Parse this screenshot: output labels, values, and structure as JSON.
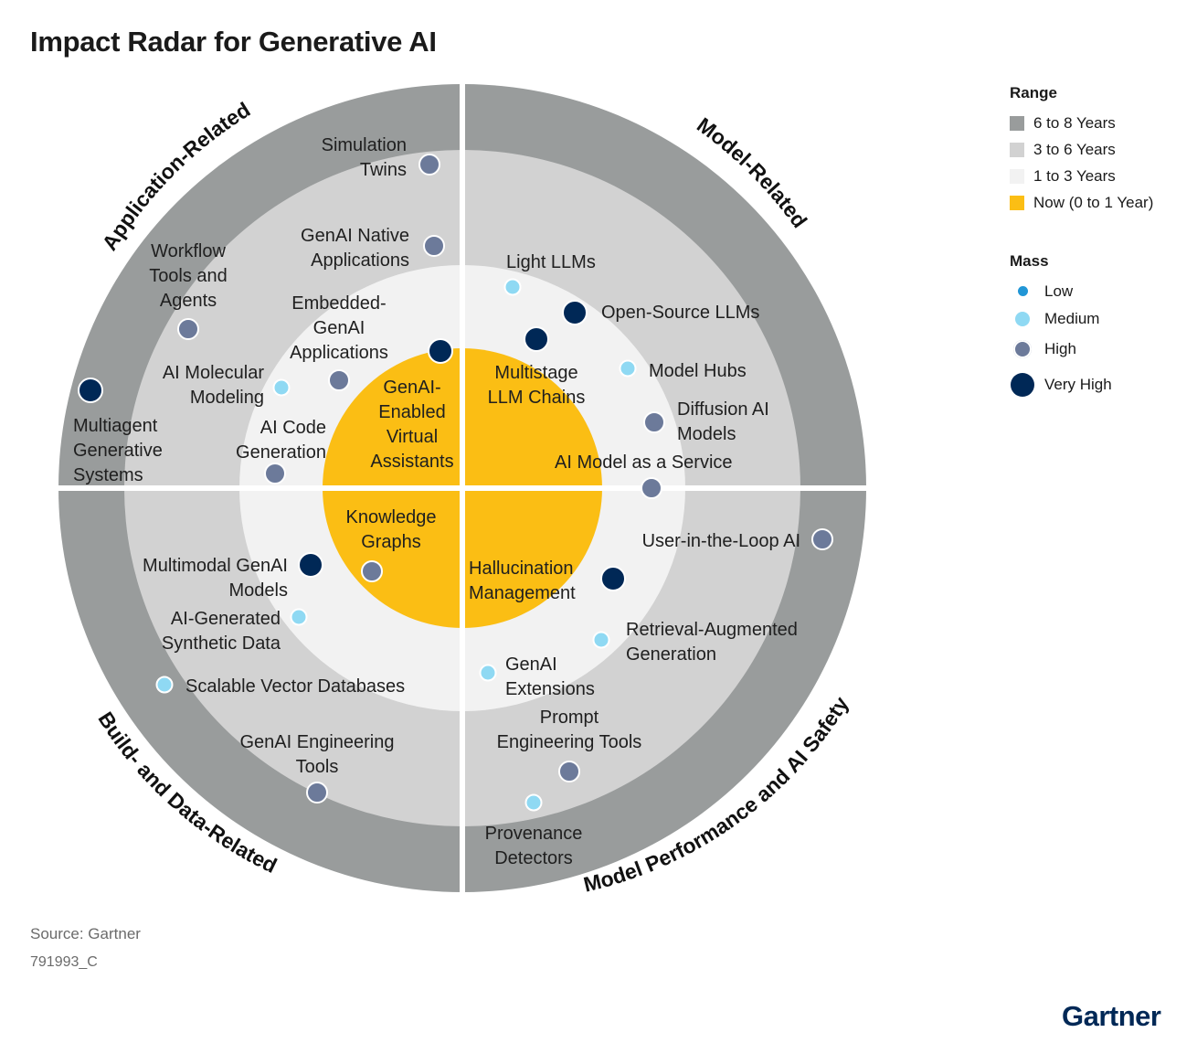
{
  "title": "Impact Radar for Generative AI",
  "legend": {
    "range_title": "Range",
    "ranges": [
      {
        "label": "6 to 8 Years",
        "color": "#999c9c"
      },
      {
        "label": "3 to 6 Years",
        "color": "#d2d2d2"
      },
      {
        "label": "1 to 3 Years",
        "color": "#f2f2f2"
      },
      {
        "label": "Now (0 to 1 Year)",
        "color": "#fbbe14"
      }
    ],
    "mass_title": "Mass",
    "mass": [
      {
        "label": "Low",
        "color": "#2196d6"
      },
      {
        "label": "Medium",
        "color": "#8fd9f3"
      },
      {
        "label": "High",
        "color": "#6c7a9a"
      },
      {
        "label": "Very High",
        "color": "#002856"
      }
    ]
  },
  "quadrants": [
    "Application-Related",
    "Model-Related",
    "Model Performance and AI Safety",
    "Build- and Data-Related"
  ],
  "items": [
    {
      "lines": [
        "Simulation",
        "Twins"
      ],
      "quadrant": "Application-Related",
      "range": "6 to 8 Years",
      "mass": "High"
    },
    {
      "lines": [
        "GenAI Native",
        "Applications"
      ],
      "quadrant": "Application-Related",
      "range": "3 to 6 Years",
      "mass": "High"
    },
    {
      "lines": [
        "Workflow",
        "Tools and",
        "Agents"
      ],
      "quadrant": "Application-Related",
      "range": "3 to 6 Years",
      "mass": "High"
    },
    {
      "lines": [
        "Embedded-",
        "GenAI",
        "Applications"
      ],
      "quadrant": "Application-Related",
      "range": "1 to 3 Years",
      "mass": "High"
    },
    {
      "lines": [
        "AI Molecular",
        "Modeling"
      ],
      "quadrant": "Application-Related",
      "range": "1 to 3 Years",
      "mass": "Medium"
    },
    {
      "lines": [
        "Multiagent",
        "Generative",
        "Systems"
      ],
      "quadrant": "Application-Related",
      "range": "6 to 8 Years",
      "mass": "Very High"
    },
    {
      "lines": [
        "AI Code",
        "Generation"
      ],
      "quadrant": "Application-Related",
      "range": "1 to 3 Years",
      "mass": "High"
    },
    {
      "lines": [
        "GenAI-",
        "Enabled",
        "Virtual",
        "Assistants"
      ],
      "quadrant": "Application-Related",
      "range": "Now (0 to 1 Year)",
      "mass": "Very High"
    },
    {
      "lines": [
        "Light LLMs"
      ],
      "quadrant": "Model-Related",
      "range": "1 to 3 Years",
      "mass": "Medium"
    },
    {
      "lines": [
        "Open-Source LLMs"
      ],
      "quadrant": "Model-Related",
      "range": "1 to 3 Years",
      "mass": "Very High"
    },
    {
      "lines": [
        "Multistage",
        "LLM Chains"
      ],
      "quadrant": "Model-Related",
      "range": "Now (0 to 1 Year)",
      "mass": "Very High"
    },
    {
      "lines": [
        "Model Hubs"
      ],
      "quadrant": "Model-Related",
      "range": "1 to 3 Years",
      "mass": "Medium"
    },
    {
      "lines": [
        "Diffusion AI",
        "Models"
      ],
      "quadrant": "Model-Related",
      "range": "1 to 3 Years",
      "mass": "High"
    },
    {
      "lines": [
        "AI Model as a Service"
      ],
      "quadrant": "Model-Related",
      "range": "1 to 3 Years",
      "mass": "High"
    },
    {
      "lines": [
        "User-in-the-Loop AI"
      ],
      "quadrant": "Model Performance and AI Safety",
      "range": "6 to 8 Years",
      "mass": "High"
    },
    {
      "lines": [
        "Hallucination",
        "Management"
      ],
      "quadrant": "Model Performance and AI Safety",
      "range": "Now (0 to 1 Year)",
      "mass": "Very High"
    },
    {
      "lines": [
        "Retrieval-Augmented",
        "Generation"
      ],
      "quadrant": "Model Performance and AI Safety",
      "range": "1 to 3 Years",
      "mass": "Medium"
    },
    {
      "lines": [
        "GenAI",
        "Extensions"
      ],
      "quadrant": "Model Performance and AI Safety",
      "range": "1 to 3 Years",
      "mass": "Medium"
    },
    {
      "lines": [
        "Prompt",
        "Engineering Tools"
      ],
      "quadrant": "Model Performance and AI Safety",
      "range": "3 to 6 Years",
      "mass": "High"
    },
    {
      "lines": [
        "Provenance",
        "Detectors"
      ],
      "quadrant": "Model Performance and AI Safety",
      "range": "3 to 6 Years",
      "mass": "Medium"
    },
    {
      "lines": [
        "Knowledge",
        "Graphs"
      ],
      "quadrant": "Build- and Data-Related",
      "range": "Now (0 to 1 Year)",
      "mass": "High"
    },
    {
      "lines": [
        "Multimodal GenAI",
        "Models"
      ],
      "quadrant": "Build- and Data-Related",
      "range": "1 to 3 Years",
      "mass": "Very High"
    },
    {
      "lines": [
        "AI-Generated",
        "Synthetic Data"
      ],
      "quadrant": "Build- and Data-Related",
      "range": "1 to 3 Years",
      "mass": "Medium"
    },
    {
      "lines": [
        "Scalable Vector Databases"
      ],
      "quadrant": "Build- and Data-Related",
      "range": "3 to 6 Years",
      "mass": "Medium"
    },
    {
      "lines": [
        "GenAI Engineering",
        "Tools"
      ],
      "quadrant": "Build- and Data-Related",
      "range": "3 to 6 Years",
      "mass": "High"
    }
  ],
  "source": "Source: Gartner",
  "code": "791993_C",
  "logo": "Gartner"
}
